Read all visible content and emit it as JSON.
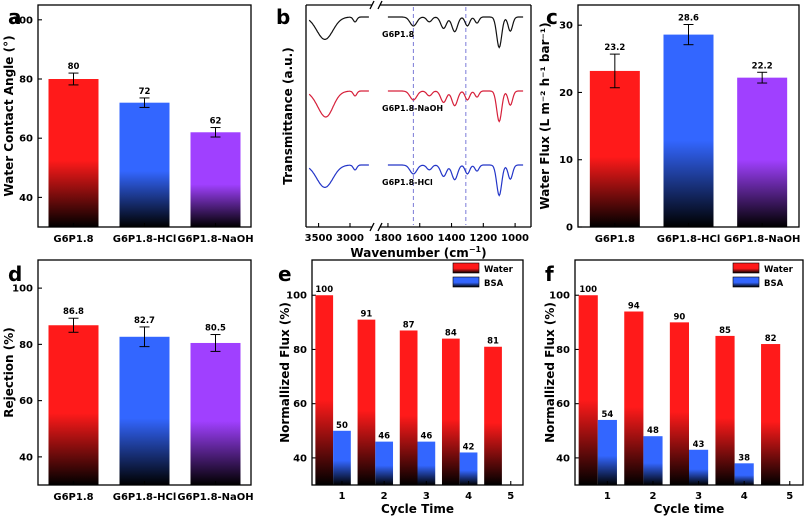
{
  "chart_data": [
    {
      "panel": "a",
      "type": "bar",
      "categories": [
        "G6P1.8",
        "G6P1.8-HCl",
        "G6P1.8-NaOH"
      ],
      "values": [
        80,
        72,
        62
      ],
      "value_labels": [
        "80",
        "72",
        "62"
      ],
      "errors": [
        2,
        1.6,
        1.6
      ],
      "ylabel": "Water Contact Angle (°)",
      "ylim": [
        30,
        105
      ],
      "yticks": [
        40,
        60,
        80,
        100
      ],
      "colors": [
        "#ff1a1a",
        "#3366ff",
        "#a040ff"
      ]
    },
    {
      "panel": "b",
      "type": "line",
      "xlabel_prefix": "Wavenumber (cm",
      "xlabel_sup": "−1",
      "xlabel_suffix": ")",
      "ylabel": "Transmittance (a.u.)",
      "xticks": [
        "3500",
        "3000",
        "1800",
        "1600",
        "1400",
        "1200",
        "1000"
      ],
      "dashed_lines_cm1": [
        1640,
        1310
      ],
      "series": [
        {
          "name": "G6P1.8",
          "color": "#111111",
          "offset": 0
        },
        {
          "name": "G6P1.8-NaOH",
          "color": "#d6203a",
          "offset": 1
        },
        {
          "name": "G6P1.8-HCl",
          "color": "#2436c8",
          "offset": 2
        }
      ]
    },
    {
      "panel": "c",
      "type": "bar",
      "categories": [
        "G6P1.8",
        "G6P1.8-HCl",
        "G6P1.8-NaOH"
      ],
      "values": [
        23.2,
        28.6,
        22.2
      ],
      "value_labels": [
        "23.2",
        "28.6",
        "22.2"
      ],
      "errors": [
        2.5,
        1.5,
        0.8
      ],
      "ylabel": "Water Flux (L m⁻² h⁻¹ bar⁻¹)",
      "ylim": [
        0,
        33
      ],
      "yticks": [
        0,
        10,
        20,
        30
      ],
      "colors": [
        "#ff1a1a",
        "#3366ff",
        "#a040ff"
      ]
    },
    {
      "panel": "d",
      "type": "bar",
      "categories": [
        "G6P1.8",
        "G6P1.8-HCl",
        "G6P1.8-NaOH"
      ],
      "values": [
        86.8,
        82.7,
        80.5
      ],
      "value_labels": [
        "86.8",
        "82.7",
        "80.5"
      ],
      "errors": [
        2.5,
        3.5,
        3
      ],
      "ylabel": "Rejection (%)",
      "ylim": [
        30,
        110
      ],
      "yticks": [
        40,
        60,
        80,
        100
      ],
      "colors": [
        "#ff1a1a",
        "#3366ff",
        "#a040ff"
      ]
    },
    {
      "panel": "e",
      "type": "bar",
      "categories": [
        "1",
        "2",
        "3",
        "4",
        "5"
      ],
      "series": [
        {
          "name": "Water",
          "color": "#ff1a1a",
          "values": [
            100,
            91,
            87,
            84,
            81
          ],
          "labels": [
            "100",
            "91",
            "87",
            "84",
            "81"
          ]
        },
        {
          "name": "BSA",
          "color": "#3366ff",
          "values": [
            50,
            46,
            46,
            42,
            null
          ],
          "labels": [
            "50",
            "46",
            "46",
            "42",
            ""
          ]
        }
      ],
      "xlabel": "Cycle Time",
      "ylabel": "Normallized Flux (%)",
      "ylim": [
        30,
        113
      ],
      "yticks": [
        40,
        60,
        80,
        100
      ]
    },
    {
      "panel": "f",
      "type": "bar",
      "categories": [
        "1",
        "2",
        "3",
        "4",
        "5"
      ],
      "series": [
        {
          "name": "Water",
          "color": "#ff1a1a",
          "values": [
            100,
            94,
            90,
            85,
            82
          ],
          "labels": [
            "100",
            "94",
            "90",
            "85",
            "82"
          ]
        },
        {
          "name": "BSA",
          "color": "#3366ff",
          "values": [
            54,
            48,
            43,
            38,
            null
          ],
          "labels": [
            "54",
            "48",
            "43",
            "38",
            ""
          ]
        }
      ],
      "xlabel": "Cycle time",
      "ylabel": "Normallized Flux (%)",
      "ylim": [
        30,
        113
      ],
      "yticks": [
        40,
        60,
        80,
        100
      ]
    }
  ]
}
